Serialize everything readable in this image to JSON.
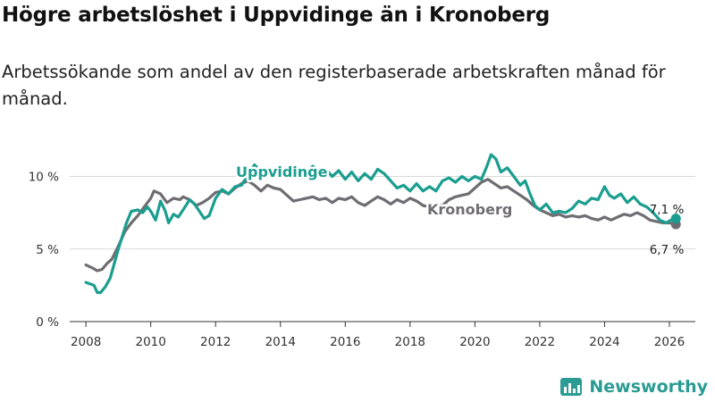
{
  "title": "Högre arbetslöshet i Uppvidinge än i Kronoberg",
  "subtitle": "Arbetssökande som andel av den registerbaserade arbetskraften månad för månad.",
  "brand": {
    "name": "Newsworthy",
    "icon": "newsworthy-logo-icon"
  },
  "colors": {
    "uppvidinge": "#1a9e8f",
    "kronoberg": "#6f6d72",
    "grid": "#d9d9d9",
    "axis": "#333333"
  },
  "chart_data": {
    "type": "line",
    "title": "Högre arbetslöshet i Uppvidinge än i Kronoberg",
    "xlabel": "",
    "ylabel": "",
    "xlim": [
      2007.5,
      2026.8
    ],
    "ylim": [
      0,
      12
    ],
    "x_ticks": [
      2008,
      2010,
      2012,
      2014,
      2016,
      2018,
      2020,
      2022,
      2024,
      2026
    ],
    "x_tick_labels": [
      "2008",
      "2010",
      "2012",
      "2014",
      "2016",
      "2018",
      "2020",
      "2022",
      "2024",
      "2026"
    ],
    "y_ticks": [
      0,
      5,
      10
    ],
    "y_tick_labels": [
      "0 %",
      "5 %",
      "10 %"
    ],
    "grid": true,
    "series": [
      {
        "name": "Uppvidinge",
        "color": "#1a9e8f",
        "end_label": "7,1 %",
        "points": [
          [
            2008.0,
            2.7
          ],
          [
            2008.25,
            2.5
          ],
          [
            2008.35,
            2.0
          ],
          [
            2008.45,
            2.0
          ],
          [
            2008.6,
            2.4
          ],
          [
            2008.75,
            3.0
          ],
          [
            2009.0,
            5.0
          ],
          [
            2009.25,
            6.8
          ],
          [
            2009.4,
            7.6
          ],
          [
            2009.6,
            7.7
          ],
          [
            2009.75,
            7.5
          ],
          [
            2009.9,
            7.9
          ],
          [
            2010.0,
            7.6
          ],
          [
            2010.15,
            7.0
          ],
          [
            2010.3,
            8.3
          ],
          [
            2010.45,
            7.6
          ],
          [
            2010.55,
            6.8
          ],
          [
            2010.7,
            7.4
          ],
          [
            2010.85,
            7.2
          ],
          [
            2011.0,
            7.7
          ],
          [
            2011.2,
            8.4
          ],
          [
            2011.35,
            8.1
          ],
          [
            2011.5,
            7.6
          ],
          [
            2011.65,
            7.1
          ],
          [
            2011.8,
            7.3
          ],
          [
            2012.0,
            8.5
          ],
          [
            2012.2,
            9.1
          ],
          [
            2012.4,
            8.8
          ],
          [
            2012.6,
            9.3
          ],
          [
            2012.8,
            9.4
          ],
          [
            2013.0,
            10.1
          ],
          [
            2013.2,
            10.8
          ],
          [
            2013.4,
            10.3
          ],
          [
            2013.6,
            10.5
          ],
          [
            2013.8,
            10.0
          ],
          [
            2014.0,
            10.4
          ],
          [
            2014.2,
            10.6
          ],
          [
            2014.35,
            10.1
          ],
          [
            2014.5,
            10.5
          ],
          [
            2014.65,
            9.9
          ],
          [
            2014.8,
            10.3
          ],
          [
            2015.0,
            10.7
          ],
          [
            2015.2,
            10.3
          ],
          [
            2015.4,
            10.5
          ],
          [
            2015.6,
            10.0
          ],
          [
            2015.8,
            10.4
          ],
          [
            2016.0,
            9.8
          ],
          [
            2016.2,
            10.3
          ],
          [
            2016.4,
            9.7
          ],
          [
            2016.6,
            10.2
          ],
          [
            2016.8,
            9.8
          ],
          [
            2017.0,
            10.5
          ],
          [
            2017.2,
            10.2
          ],
          [
            2017.4,
            9.7
          ],
          [
            2017.6,
            9.2
          ],
          [
            2017.8,
            9.4
          ],
          [
            2018.0,
            9.0
          ],
          [
            2018.2,
            9.5
          ],
          [
            2018.4,
            9.0
          ],
          [
            2018.6,
            9.3
          ],
          [
            2018.8,
            9.0
          ],
          [
            2019.0,
            9.7
          ],
          [
            2019.2,
            9.9
          ],
          [
            2019.4,
            9.6
          ],
          [
            2019.6,
            10.0
          ],
          [
            2019.8,
            9.7
          ],
          [
            2020.0,
            10.0
          ],
          [
            2020.2,
            9.8
          ],
          [
            2020.35,
            10.6
          ],
          [
            2020.5,
            11.5
          ],
          [
            2020.65,
            11.2
          ],
          [
            2020.8,
            10.3
          ],
          [
            2021.0,
            10.6
          ],
          [
            2021.2,
            10.0
          ],
          [
            2021.4,
            9.4
          ],
          [
            2021.55,
            9.7
          ],
          [
            2021.7,
            8.8
          ],
          [
            2021.85,
            8.0
          ],
          [
            2022.0,
            7.7
          ],
          [
            2022.2,
            8.1
          ],
          [
            2022.4,
            7.5
          ],
          [
            2022.6,
            7.6
          ],
          [
            2022.8,
            7.5
          ],
          [
            2023.0,
            7.8
          ],
          [
            2023.2,
            8.3
          ],
          [
            2023.4,
            8.1
          ],
          [
            2023.6,
            8.5
          ],
          [
            2023.8,
            8.4
          ],
          [
            2024.0,
            9.3
          ],
          [
            2024.15,
            8.7
          ],
          [
            2024.3,
            8.5
          ],
          [
            2024.5,
            8.8
          ],
          [
            2024.7,
            8.2
          ],
          [
            2024.9,
            8.6
          ],
          [
            2025.1,
            8.1
          ],
          [
            2025.3,
            7.9
          ],
          [
            2025.5,
            7.5
          ],
          [
            2025.7,
            7.0
          ],
          [
            2025.9,
            6.8
          ],
          [
            2026.05,
            7.0
          ],
          [
            2026.2,
            7.1
          ]
        ]
      },
      {
        "name": "Kronoberg",
        "color": "#6f6d72",
        "end_label": "6,7 %",
        "points": [
          [
            2008.0,
            3.9
          ],
          [
            2008.2,
            3.7
          ],
          [
            2008.35,
            3.5
          ],
          [
            2008.5,
            3.6
          ],
          [
            2008.65,
            4.0
          ],
          [
            2008.8,
            4.3
          ],
          [
            2009.0,
            5.2
          ],
          [
            2009.2,
            6.2
          ],
          [
            2009.4,
            6.8
          ],
          [
            2009.6,
            7.3
          ],
          [
            2009.8,
            7.9
          ],
          [
            2010.0,
            8.5
          ],
          [
            2010.1,
            9.0
          ],
          [
            2010.3,
            8.8
          ],
          [
            2010.5,
            8.2
          ],
          [
            2010.7,
            8.5
          ],
          [
            2010.9,
            8.4
          ],
          [
            2011.0,
            8.6
          ],
          [
            2011.2,
            8.4
          ],
          [
            2011.4,
            8.0
          ],
          [
            2011.6,
            8.2
          ],
          [
            2011.8,
            8.5
          ],
          [
            2012.0,
            8.9
          ],
          [
            2012.2,
            9.0
          ],
          [
            2012.4,
            8.8
          ],
          [
            2012.6,
            9.2
          ],
          [
            2012.8,
            9.5
          ],
          [
            2013.0,
            9.7
          ],
          [
            2013.2,
            9.4
          ],
          [
            2013.4,
            9.0
          ],
          [
            2013.6,
            9.4
          ],
          [
            2013.8,
            9.2
          ],
          [
            2014.0,
            9.1
          ],
          [
            2014.2,
            8.7
          ],
          [
            2014.4,
            8.3
          ],
          [
            2014.6,
            8.4
          ],
          [
            2014.8,
            8.5
          ],
          [
            2015.0,
            8.6
          ],
          [
            2015.2,
            8.4
          ],
          [
            2015.4,
            8.5
          ],
          [
            2015.6,
            8.2
          ],
          [
            2015.8,
            8.5
          ],
          [
            2016.0,
            8.4
          ],
          [
            2016.2,
            8.6
          ],
          [
            2016.4,
            8.2
          ],
          [
            2016.6,
            8.0
          ],
          [
            2016.8,
            8.3
          ],
          [
            2017.0,
            8.6
          ],
          [
            2017.2,
            8.4
          ],
          [
            2017.4,
            8.1
          ],
          [
            2017.6,
            8.4
          ],
          [
            2017.8,
            8.2
          ],
          [
            2018.0,
            8.5
          ],
          [
            2018.2,
            8.3
          ],
          [
            2018.4,
            8.0
          ],
          [
            2018.6,
            7.9
          ],
          [
            2018.8,
            8.1
          ],
          [
            2019.0,
            8.0
          ],
          [
            2019.2,
            8.4
          ],
          [
            2019.4,
            8.6
          ],
          [
            2019.6,
            8.7
          ],
          [
            2019.8,
            8.8
          ],
          [
            2020.0,
            9.2
          ],
          [
            2020.2,
            9.6
          ],
          [
            2020.4,
            9.8
          ],
          [
            2020.6,
            9.5
          ],
          [
            2020.8,
            9.2
          ],
          [
            2021.0,
            9.3
          ],
          [
            2021.2,
            9.0
          ],
          [
            2021.4,
            8.7
          ],
          [
            2021.6,
            8.4
          ],
          [
            2021.8,
            8.0
          ],
          [
            2022.0,
            7.7
          ],
          [
            2022.2,
            7.5
          ],
          [
            2022.4,
            7.3
          ],
          [
            2022.6,
            7.4
          ],
          [
            2022.8,
            7.2
          ],
          [
            2023.0,
            7.3
          ],
          [
            2023.2,
            7.2
          ],
          [
            2023.4,
            7.3
          ],
          [
            2023.6,
            7.1
          ],
          [
            2023.8,
            7.0
          ],
          [
            2024.0,
            7.2
          ],
          [
            2024.2,
            7.0
          ],
          [
            2024.4,
            7.2
          ],
          [
            2024.6,
            7.4
          ],
          [
            2024.8,
            7.3
          ],
          [
            2025.0,
            7.5
          ],
          [
            2025.2,
            7.3
          ],
          [
            2025.4,
            7.0
          ],
          [
            2025.6,
            6.9
          ],
          [
            2025.8,
            6.8
          ],
          [
            2026.0,
            6.8
          ],
          [
            2026.2,
            6.7
          ]
        ]
      }
    ]
  }
}
